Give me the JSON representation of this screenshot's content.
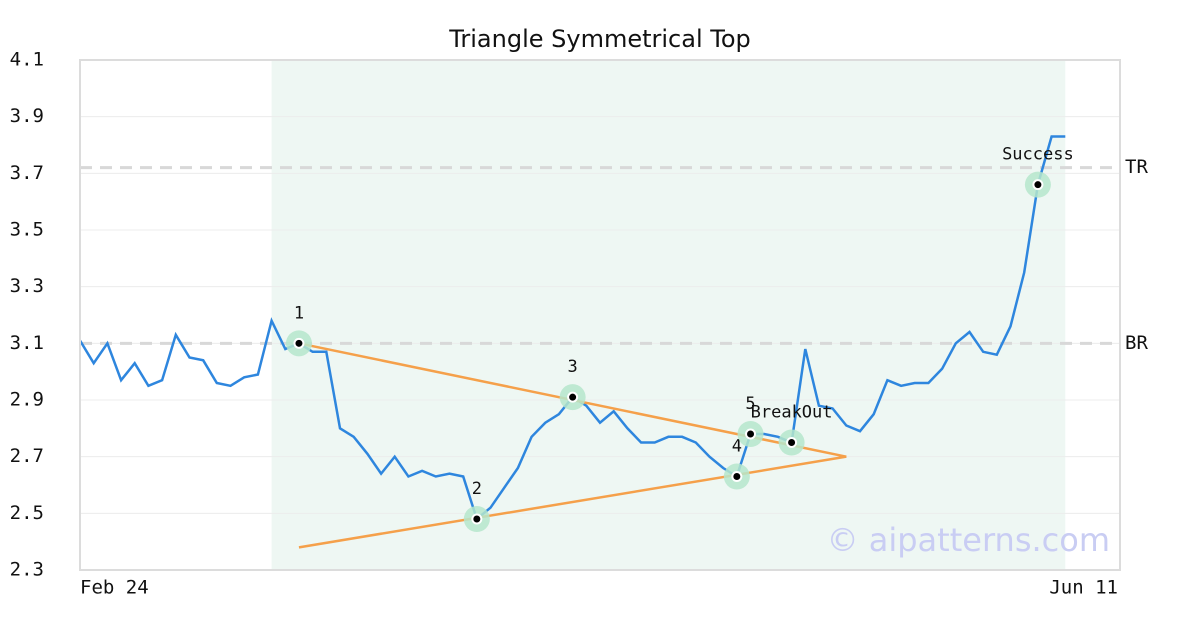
{
  "chart_data": {
    "type": "line",
    "title": "Triangle Symmetrical Top",
    "categories": [
      "Feb 24",
      null,
      null,
      null,
      null,
      null,
      null,
      null,
      null,
      null,
      null,
      null,
      null,
      null,
      null,
      null,
      null,
      null,
      null,
      null,
      null,
      null,
      null,
      null,
      null,
      null,
      null,
      null,
      null,
      null,
      null,
      null,
      null,
      null,
      null,
      null,
      null,
      null,
      null,
      null,
      null,
      null,
      null,
      null,
      null,
      null,
      null,
      null,
      null,
      null,
      null,
      null,
      null,
      null,
      null,
      null,
      null,
      null,
      null,
      null,
      null,
      null,
      null,
      null,
      null,
      null,
      null,
      null,
      null,
      null,
      null,
      null,
      null,
      null,
      null,
      null,
      "Jun 11"
    ],
    "values": [
      3.11,
      3.03,
      3.1,
      2.97,
      3.03,
      2.95,
      2.97,
      3.13,
      3.05,
      3.04,
      2.96,
      2.95,
      2.98,
      2.99,
      3.18,
      3.08,
      3.1,
      3.07,
      3.07,
      2.8,
      2.77,
      2.71,
      2.64,
      2.7,
      2.63,
      2.65,
      2.63,
      2.64,
      2.63,
      2.48,
      2.52,
      2.59,
      2.66,
      2.77,
      2.82,
      2.85,
      2.91,
      2.88,
      2.82,
      2.86,
      2.8,
      2.75,
      2.75,
      2.77,
      2.77,
      2.75,
      2.7,
      2.66,
      2.63,
      2.78,
      2.78,
      2.77,
      2.75,
      3.08,
      2.88,
      2.87,
      2.81,
      2.79,
      2.85,
      2.97,
      2.95,
      2.96,
      2.96,
      3.01,
      3.1,
      3.14,
      3.07,
      3.06,
      3.16,
      3.35,
      3.66,
      3.83,
      3.83,
      null,
      null,
      null,
      null
    ],
    "color": "#2e86de",
    "ylim": [
      2.3,
      4.1
    ],
    "yticks": [
      2.3,
      2.5,
      2.7,
      2.9,
      3.1,
      3.3,
      3.5,
      3.7,
      3.9,
      4.1
    ],
    "grid": true,
    "highlight_range": [
      14,
      72
    ],
    "levels": [
      {
        "label": "TR",
        "value": 3.72
      },
      {
        "label": "BR",
        "value": 3.1
      }
    ],
    "pattern_lines": [
      {
        "x": [
          16,
          56
        ],
        "values": [
          3.1,
          2.7
        ]
      },
      {
        "x": [
          16,
          56
        ],
        "values": [
          2.38,
          2.7
        ]
      }
    ],
    "pattern_color": "#f5a04a",
    "annotations": [
      {
        "label": "1",
        "at": 16,
        "value": 3.1
      },
      {
        "label": "2",
        "at": 29,
        "value": 2.48
      },
      {
        "label": "3",
        "at": 36,
        "value": 2.91
      },
      {
        "label": "4",
        "at": 48,
        "value": 2.63
      },
      {
        "label": "5",
        "at": 49,
        "value": 2.78
      },
      {
        "label": "BreakOut",
        "at": 52,
        "value": 2.75
      },
      {
        "label": "Success",
        "at": 70,
        "value": 3.66
      }
    ],
    "watermark": "© aipatterns.com"
  }
}
